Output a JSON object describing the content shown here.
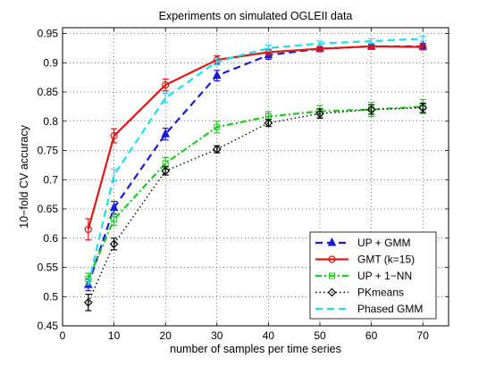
{
  "chart_data": {
    "type": "line",
    "title": "Experiments on simulated OGLEII data",
    "xlabel": "number of samples per time series",
    "ylabel": "10−fold CV accuracy",
    "xlim": [
      0,
      75
    ],
    "ylim": [
      0.45,
      0.96
    ],
    "xticks": [
      0,
      10,
      20,
      30,
      40,
      50,
      60,
      70
    ],
    "xtick_labels": [
      "0",
      "10",
      "20",
      "30",
      "40",
      "50",
      "60",
      "70"
    ],
    "yticks": [
      0.45,
      0.5,
      0.55,
      0.6,
      0.65,
      0.7,
      0.75,
      0.8,
      0.85,
      0.9,
      0.95
    ],
    "ytick_labels": [
      "0.45",
      "0.5",
      "0.55",
      "0.6",
      "0.65",
      "0.7",
      "0.75",
      "0.8",
      "0.85",
      "0.9",
      "0.95"
    ],
    "grid": true,
    "legend_position": "bottom-right",
    "x": [
      5,
      10,
      20,
      30,
      40,
      50,
      60,
      70
    ],
    "series": [
      {
        "name": "UP + GMM",
        "color": "#1a1ad4",
        "dash": "dashed",
        "marker": "triangle-up",
        "values": [
          0.52,
          0.652,
          0.778,
          0.878,
          0.913,
          0.924,
          0.928,
          0.928
        ],
        "errors": [
          0.01,
          0.011,
          0.01,
          0.009,
          0.007,
          0.005,
          0.005,
          0.005
        ]
      },
      {
        "name": "GMT (k=15)",
        "color": "#e01818",
        "dash": "solid",
        "marker": "circle",
        "values": [
          0.615,
          0.775,
          0.862,
          0.905,
          0.918,
          0.924,
          0.928,
          0.927
        ],
        "errors": [
          0.018,
          0.012,
          0.01,
          0.007,
          0.005,
          0.004,
          0.004,
          0.005
        ]
      },
      {
        "name": "UP + 1−NN",
        "color": "#22c822",
        "dash": "dashdot",
        "marker": "square",
        "values": [
          0.53,
          0.632,
          0.728,
          0.79,
          0.808,
          0.817,
          0.82,
          0.825
        ],
        "errors": [
          0.01,
          0.01,
          0.01,
          0.01,
          0.008,
          0.01,
          0.012,
          0.012
        ]
      },
      {
        "name": "PKmeans",
        "color": "#000000",
        "dash": "dotted",
        "marker": "diamond",
        "values": [
          0.49,
          0.59,
          0.715,
          0.752,
          0.797,
          0.813,
          0.82,
          0.823
        ],
        "errors": [
          0.014,
          0.01,
          0.007,
          0.006,
          0.006,
          0.008,
          0.008,
          0.008
        ]
      },
      {
        "name": "Phased GMM",
        "color": "#22dcec",
        "dash": "dashed",
        "marker": "none",
        "values": [
          0.52,
          0.708,
          0.84,
          0.902,
          0.925,
          0.933,
          0.937,
          0.941
        ],
        "errors": [
          0.0,
          0.01,
          0.008,
          0.006,
          0.005,
          0.004,
          0.004,
          0.004
        ]
      }
    ]
  }
}
